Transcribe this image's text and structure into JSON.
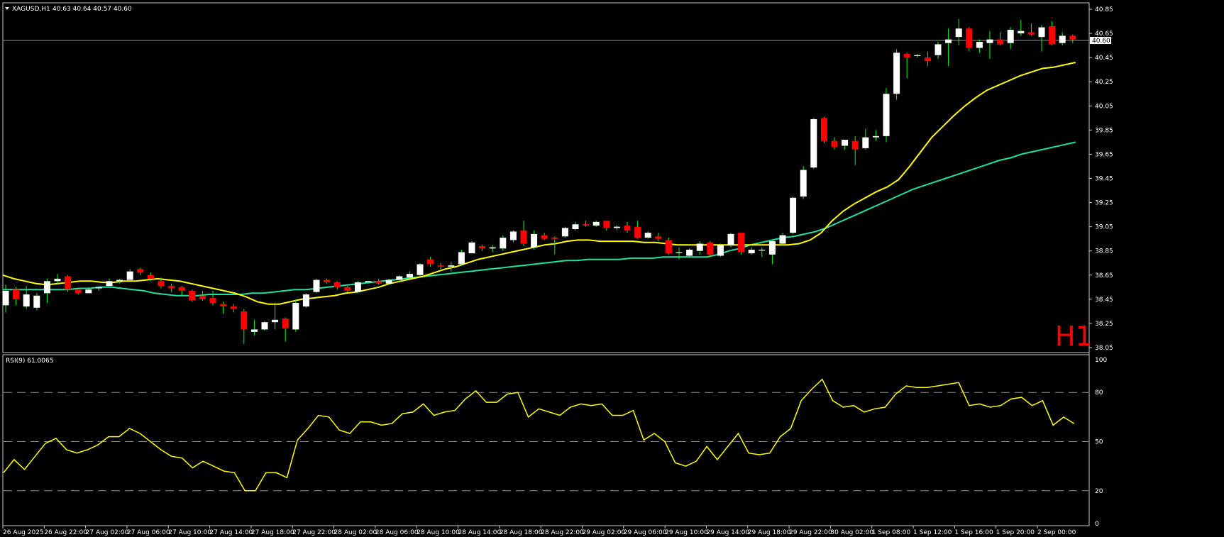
{
  "header": {
    "symbol": "XAGUSD,H1",
    "ohlc": "40.63 40.64 40.57 40.60",
    "timeframe_label": "H1"
  },
  "rsi": {
    "label": "RSI(9) 61.0065",
    "levels": [
      80,
      50,
      20
    ],
    "scale_labels": [
      "100",
      "80",
      "50",
      "20",
      "0"
    ],
    "line_color": "#ffff00",
    "values": [
      31,
      39,
      33,
      41,
      49,
      52,
      45,
      43,
      45,
      48,
      53,
      53,
      58,
      55,
      50,
      45,
      41,
      40,
      34,
      38,
      35,
      32,
      31,
      20,
      20,
      31,
      31,
      28,
      51,
      58,
      66,
      65,
      57,
      55,
      62,
      62,
      60,
      61,
      67,
      68,
      73,
      66,
      68,
      69,
      76,
      81,
      74,
      74,
      79,
      80,
      65,
      70,
      68,
      66,
      71,
      73,
      72,
      73,
      66,
      66,
      69,
      51,
      55,
      50,
      37,
      35,
      38,
      47,
      39,
      47,
      55,
      43,
      42,
      43,
      53,
      58,
      75,
      82,
      88,
      75,
      71,
      72,
      68,
      70,
      71,
      79,
      84,
      83,
      83,
      84,
      85,
      86,
      72,
      73,
      71,
      72,
      76,
      77,
      72,
      75,
      60,
      65,
      61
    ]
  },
  "price_scale_labels": [
    "40.85",
    "40.65",
    "40.45",
    "40.25",
    "40.05",
    "39.85",
    "39.65",
    "39.45",
    "39.25",
    "39.05",
    "38.85",
    "38.65",
    "38.45",
    "38.25",
    "38.05"
  ],
  "current_price_label": "40.60",
  "time_labels": [
    "26 Aug 2025",
    "26 Aug 22:00",
    "27 Aug 02:00",
    "27 Aug 06:00",
    "27 Aug 10:00",
    "27 Aug 14:00",
    "27 Aug 18:00",
    "27 Aug 22:00",
    "28 Aug 02:00",
    "28 Aug 06:00",
    "28 Aug 10:00",
    "28 Aug 14:00",
    "28 Aug 18:00",
    "28 Aug 22:00",
    "29 Aug 02:00",
    "29 Aug 06:00",
    "29 Aug 10:00",
    "29 Aug 14:00",
    "29 Aug 18:00",
    "29 Aug 22:00",
    "30 Aug 02:00",
    "1 Sep 08:00",
    "1 Sep 12:00",
    "1 Sep 16:00",
    "1 Sep 20:00",
    "2 Sep 00:00"
  ],
  "colors": {
    "background": "#000000",
    "bull_candle": "#ffffff",
    "bear_candle": "#ff0000",
    "wick": "#00ff00",
    "ma_fast": "#ffff00",
    "ma_slow": "#20e0a0",
    "grid_levels": "#8c8c8c",
    "timeframe_label": "#ff0000"
  },
  "chart_data": {
    "type": "candlestick",
    "title": "XAGUSD,H1",
    "ylim": [
      38.02,
      40.92
    ],
    "candles": [
      {
        "o": 38.4,
        "h": 38.57,
        "l": 38.34,
        "c": 38.52
      },
      {
        "o": 38.53,
        "h": 38.55,
        "l": 38.4,
        "c": 38.45
      },
      {
        "o": 38.39,
        "h": 38.56,
        "l": 38.37,
        "c": 38.49
      },
      {
        "o": 38.38,
        "h": 38.5,
        "l": 38.36,
        "c": 38.48
      },
      {
        "o": 38.5,
        "h": 38.62,
        "l": 38.42,
        "c": 38.6
      },
      {
        "o": 38.6,
        "h": 38.66,
        "l": 38.58,
        "c": 38.62
      },
      {
        "o": 38.64,
        "h": 38.65,
        "l": 38.51,
        "c": 38.53
      },
      {
        "o": 38.53,
        "h": 38.53,
        "l": 38.49,
        "c": 38.5
      },
      {
        "o": 38.5,
        "h": 38.55,
        "l": 38.5,
        "c": 38.53
      },
      {
        "o": 38.54,
        "h": 38.56,
        "l": 38.52,
        "c": 38.55
      },
      {
        "o": 38.56,
        "h": 38.62,
        "l": 38.56,
        "c": 38.6
      },
      {
        "o": 38.6,
        "h": 38.62,
        "l": 38.58,
        "c": 38.61
      },
      {
        "o": 38.61,
        "h": 38.7,
        "l": 38.61,
        "c": 38.68
      },
      {
        "o": 38.7,
        "h": 38.71,
        "l": 38.65,
        "c": 38.67
      },
      {
        "o": 38.65,
        "h": 38.67,
        "l": 38.6,
        "c": 38.62
      },
      {
        "o": 38.6,
        "h": 38.63,
        "l": 38.54,
        "c": 38.56
      },
      {
        "o": 38.56,
        "h": 38.58,
        "l": 38.51,
        "c": 38.54
      },
      {
        "o": 38.55,
        "h": 38.56,
        "l": 38.48,
        "c": 38.52
      },
      {
        "o": 38.52,
        "h": 38.53,
        "l": 38.43,
        "c": 38.44
      },
      {
        "o": 38.48,
        "h": 38.52,
        "l": 38.44,
        "c": 38.45
      },
      {
        "o": 38.46,
        "h": 38.52,
        "l": 38.4,
        "c": 38.42
      },
      {
        "o": 38.41,
        "h": 38.43,
        "l": 38.33,
        "c": 38.39
      },
      {
        "o": 38.39,
        "h": 38.41,
        "l": 38.34,
        "c": 38.37
      },
      {
        "o": 38.35,
        "h": 38.37,
        "l": 38.08,
        "c": 38.2
      },
      {
        "o": 38.18,
        "h": 38.28,
        "l": 38.15,
        "c": 38.2
      },
      {
        "o": 38.2,
        "h": 38.27,
        "l": 38.19,
        "c": 38.26
      },
      {
        "o": 38.26,
        "h": 38.4,
        "l": 38.2,
        "c": 38.28
      },
      {
        "o": 38.29,
        "h": 38.3,
        "l": 38.1,
        "c": 38.21
      },
      {
        "o": 38.2,
        "h": 38.45,
        "l": 38.18,
        "c": 38.42
      },
      {
        "o": 38.39,
        "h": 38.5,
        "l": 38.38,
        "c": 38.49
      },
      {
        "o": 38.51,
        "h": 38.62,
        "l": 38.5,
        "c": 38.61
      },
      {
        "o": 38.61,
        "h": 38.62,
        "l": 38.58,
        "c": 38.59
      },
      {
        "o": 38.59,
        "h": 38.6,
        "l": 38.53,
        "c": 38.55
      },
      {
        "o": 38.55,
        "h": 38.56,
        "l": 38.51,
        "c": 38.52
      },
      {
        "o": 38.51,
        "h": 38.6,
        "l": 38.5,
        "c": 38.59
      },
      {
        "o": 38.59,
        "h": 38.6,
        "l": 38.58,
        "c": 38.6
      },
      {
        "o": 38.6,
        "h": 38.62,
        "l": 38.57,
        "c": 38.58
      },
      {
        "o": 38.58,
        "h": 38.62,
        "l": 38.57,
        "c": 38.61
      },
      {
        "o": 38.61,
        "h": 38.65,
        "l": 38.59,
        "c": 38.64
      },
      {
        "o": 38.63,
        "h": 38.68,
        "l": 38.62,
        "c": 38.66
      },
      {
        "o": 38.65,
        "h": 38.75,
        "l": 38.64,
        "c": 38.74
      },
      {
        "o": 38.78,
        "h": 38.8,
        "l": 38.72,
        "c": 38.74
      },
      {
        "o": 38.73,
        "h": 38.75,
        "l": 38.7,
        "c": 38.72
      },
      {
        "o": 38.72,
        "h": 38.76,
        "l": 38.68,
        "c": 38.73
      },
      {
        "o": 38.74,
        "h": 38.86,
        "l": 38.73,
        "c": 38.84
      },
      {
        "o": 38.83,
        "h": 38.93,
        "l": 38.83,
        "c": 38.92
      },
      {
        "o": 38.89,
        "h": 38.9,
        "l": 38.85,
        "c": 38.87
      },
      {
        "o": 38.87,
        "h": 38.9,
        "l": 38.84,
        "c": 38.88
      },
      {
        "o": 38.87,
        "h": 38.98,
        "l": 38.85,
        "c": 38.96
      },
      {
        "o": 38.94,
        "h": 39.02,
        "l": 38.92,
        "c": 39.01
      },
      {
        "o": 39.02,
        "h": 39.1,
        "l": 38.89,
        "c": 38.91
      },
      {
        "o": 38.88,
        "h": 39.02,
        "l": 38.86,
        "c": 38.99
      },
      {
        "o": 38.98,
        "h": 39.0,
        "l": 38.94,
        "c": 38.95
      },
      {
        "o": 38.96,
        "h": 38.97,
        "l": 38.82,
        "c": 38.95
      },
      {
        "o": 38.97,
        "h": 39.05,
        "l": 38.96,
        "c": 39.04
      },
      {
        "o": 39.03,
        "h": 39.09,
        "l": 39.02,
        "c": 39.07
      },
      {
        "o": 39.07,
        "h": 39.1,
        "l": 39.05,
        "c": 39.06
      },
      {
        "o": 39.06,
        "h": 39.1,
        "l": 39.05,
        "c": 39.09
      },
      {
        "o": 39.1,
        "h": 39.1,
        "l": 39.02,
        "c": 39.04
      },
      {
        "o": 39.04,
        "h": 39.06,
        "l": 39.02,
        "c": 39.05
      },
      {
        "o": 39.06,
        "h": 39.09,
        "l": 39.0,
        "c": 39.02
      },
      {
        "o": 39.05,
        "h": 39.1,
        "l": 38.95,
        "c": 38.96
      },
      {
        "o": 38.96,
        "h": 39.01,
        "l": 38.95,
        "c": 39.0
      },
      {
        "o": 38.97,
        "h": 39.0,
        "l": 38.93,
        "c": 38.95
      },
      {
        "o": 38.94,
        "h": 38.96,
        "l": 38.82,
        "c": 38.83
      },
      {
        "o": 38.84,
        "h": 38.88,
        "l": 38.78,
        "c": 38.84
      },
      {
        "o": 38.81,
        "h": 38.87,
        "l": 38.8,
        "c": 38.86
      },
      {
        "o": 38.85,
        "h": 38.93,
        "l": 38.82,
        "c": 38.91
      },
      {
        "o": 38.92,
        "h": 38.93,
        "l": 38.8,
        "c": 38.82
      },
      {
        "o": 38.81,
        "h": 38.91,
        "l": 38.8,
        "c": 38.9
      },
      {
        "o": 38.9,
        "h": 39.0,
        "l": 38.88,
        "c": 38.99
      },
      {
        "o": 39.0,
        "h": 39.0,
        "l": 38.82,
        "c": 38.84
      },
      {
        "o": 38.83,
        "h": 38.88,
        "l": 38.82,
        "c": 38.86
      },
      {
        "o": 38.86,
        "h": 38.88,
        "l": 38.8,
        "c": 38.86
      },
      {
        "o": 38.82,
        "h": 38.94,
        "l": 38.74,
        "c": 38.93
      },
      {
        "o": 38.91,
        "h": 39.0,
        "l": 38.9,
        "c": 38.98
      },
      {
        "o": 39.0,
        "h": 39.3,
        "l": 38.99,
        "c": 39.29
      },
      {
        "o": 39.3,
        "h": 39.55,
        "l": 39.28,
        "c": 39.52
      },
      {
        "o": 39.54,
        "h": 39.95,
        "l": 39.53,
        "c": 39.94
      },
      {
        "o": 39.95,
        "h": 39.96,
        "l": 39.74,
        "c": 39.76
      },
      {
        "o": 39.76,
        "h": 39.79,
        "l": 39.69,
        "c": 39.71
      },
      {
        "o": 39.72,
        "h": 39.77,
        "l": 39.69,
        "c": 39.77
      },
      {
        "o": 39.76,
        "h": 39.8,
        "l": 39.56,
        "c": 39.69
      },
      {
        "o": 39.7,
        "h": 39.86,
        "l": 39.69,
        "c": 39.79
      },
      {
        "o": 39.79,
        "h": 39.85,
        "l": 39.76,
        "c": 39.8
      },
      {
        "o": 39.8,
        "h": 40.2,
        "l": 39.75,
        "c": 40.15
      },
      {
        "o": 40.15,
        "h": 40.52,
        "l": 40.1,
        "c": 40.49
      },
      {
        "o": 40.48,
        "h": 40.49,
        "l": 40.28,
        "c": 40.45
      },
      {
        "o": 40.47,
        "h": 40.48,
        "l": 40.45,
        "c": 40.47
      },
      {
        "o": 40.45,
        "h": 40.5,
        "l": 40.38,
        "c": 40.42
      },
      {
        "o": 40.47,
        "h": 40.58,
        "l": 40.44,
        "c": 40.56
      },
      {
        "o": 40.57,
        "h": 40.69,
        "l": 40.38,
        "c": 40.6
      },
      {
        "o": 40.62,
        "h": 40.77,
        "l": 40.55,
        "c": 40.69
      },
      {
        "o": 40.69,
        "h": 40.7,
        "l": 40.5,
        "c": 40.53
      },
      {
        "o": 40.53,
        "h": 40.6,
        "l": 40.49,
        "c": 40.58
      },
      {
        "o": 40.57,
        "h": 40.67,
        "l": 40.44,
        "c": 40.6
      },
      {
        "o": 40.6,
        "h": 40.66,
        "l": 40.55,
        "c": 40.56
      },
      {
        "o": 40.57,
        "h": 40.7,
        "l": 40.52,
        "c": 40.68
      },
      {
        "o": 40.65,
        "h": 40.76,
        "l": 40.63,
        "c": 40.67
      },
      {
        "o": 40.66,
        "h": 40.73,
        "l": 40.63,
        "c": 40.64
      },
      {
        "o": 40.62,
        "h": 40.72,
        "l": 40.5,
        "c": 40.7
      },
      {
        "o": 40.71,
        "h": 40.75,
        "l": 40.55,
        "c": 40.56
      },
      {
        "o": 40.57,
        "h": 40.66,
        "l": 40.55,
        "c": 40.63
      },
      {
        "o": 40.63,
        "h": 40.64,
        "l": 40.57,
        "c": 40.6
      }
    ],
    "ma_fast": [
      38.65,
      38.62,
      38.6,
      38.58,
      38.57,
      38.58,
      38.59,
      38.6,
      38.6,
      38.59,
      38.59,
      38.6,
      38.6,
      38.61,
      38.62,
      38.61,
      38.6,
      38.58,
      38.56,
      38.54,
      38.52,
      38.5,
      38.47,
      38.43,
      38.41,
      38.41,
      38.43,
      38.45,
      38.46,
      38.47,
      38.48,
      38.5,
      38.51,
      38.53,
      38.55,
      38.58,
      38.6,
      38.62,
      38.64,
      38.67,
      38.7,
      38.72,
      38.75,
      38.78,
      38.8,
      38.82,
      38.84,
      38.86,
      38.88,
      38.9,
      38.91,
      38.93,
      38.94,
      38.94,
      38.93,
      38.93,
      38.93,
      38.93,
      38.92,
      38.92,
      38.91,
      38.9,
      38.9,
      38.9,
      38.9,
      38.9,
      38.9,
      38.9,
      38.9,
      38.9,
      38.9,
      38.9,
      38.91,
      38.94,
      39.0,
      39.1,
      39.18,
      39.24,
      39.29,
      39.34,
      39.38,
      39.44,
      39.55,
      39.67,
      39.79,
      39.88,
      39.97,
      40.05,
      40.12,
      40.18,
      40.22,
      40.26,
      40.3,
      40.33,
      40.36,
      40.37,
      40.39,
      40.41
    ],
    "ma_slow": [
      38.53,
      38.53,
      38.53,
      38.53,
      38.53,
      38.53,
      38.53,
      38.54,
      38.54,
      38.55,
      38.55,
      38.54,
      38.53,
      38.52,
      38.5,
      38.49,
      38.48,
      38.48,
      38.48,
      38.49,
      38.49,
      38.49,
      38.49,
      38.5,
      38.5,
      38.51,
      38.52,
      38.53,
      38.53,
      38.54,
      38.55,
      38.56,
      38.57,
      38.58,
      38.59,
      38.6,
      38.61,
      38.62,
      38.63,
      38.64,
      38.65,
      38.66,
      38.67,
      38.68,
      38.69,
      38.7,
      38.71,
      38.72,
      38.73,
      38.74,
      38.75,
      38.76,
      38.77,
      38.77,
      38.78,
      38.78,
      38.78,
      38.78,
      38.79,
      38.79,
      38.79,
      38.8,
      38.8,
      38.8,
      38.8,
      38.8,
      38.82,
      38.85,
      38.87,
      38.9,
      38.92,
      38.94,
      38.96,
      38.97,
      38.99,
      39.01,
      39.04,
      39.08,
      39.12,
      39.16,
      39.2,
      39.24,
      39.28,
      39.32,
      39.36,
      39.39,
      39.42,
      39.45,
      39.48,
      39.51,
      39.54,
      39.57,
      39.6,
      39.62,
      39.65,
      39.67,
      39.69,
      39.71,
      39.73,
      39.75
    ]
  }
}
